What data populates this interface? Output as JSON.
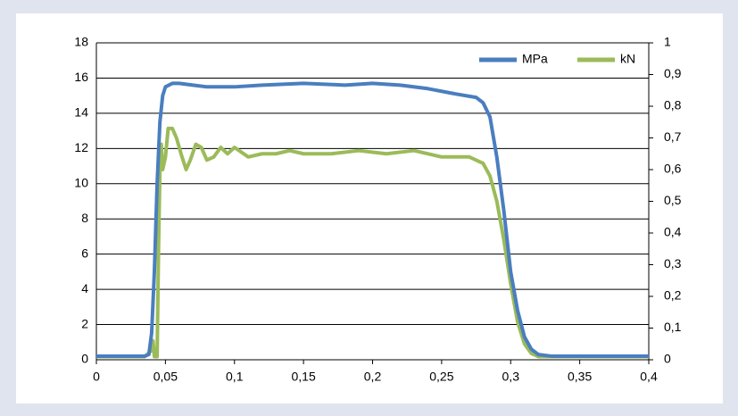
{
  "chart_data": {
    "type": "line",
    "xlim": [
      0,
      0.4
    ],
    "xticks": [
      0,
      {
        "value": 0.05,
        "label": "0,05"
      },
      {
        "value": 0.1,
        "label": "0,1"
      },
      {
        "value": 0.15,
        "label": "0,15"
      },
      {
        "value": 0.2,
        "label": "0,2"
      },
      {
        "value": 0.25,
        "label": "0,25"
      },
      {
        "value": 0.3,
        "label": "0,3"
      },
      {
        "value": 0.35,
        "label": "0,35"
      },
      {
        "value": 0.4,
        "label": "0,4"
      }
    ],
    "ylim": [
      0,
      18
    ],
    "yticks": [
      0,
      2,
      4,
      6,
      8,
      10,
      12,
      14,
      16,
      18
    ],
    "y2lim": [
      0,
      1
    ],
    "y2ticks": [
      0,
      {
        "value": 0.1,
        "label": "0,1"
      },
      {
        "value": 0.2,
        "label": "0,2"
      },
      {
        "value": 0.3,
        "label": "0,3"
      },
      {
        "value": 0.4,
        "label": "0,4"
      },
      {
        "value": 0.5,
        "label": "0,5"
      },
      {
        "value": 0.6,
        "label": "0,6"
      },
      {
        "value": 0.7,
        "label": "0,7"
      },
      {
        "value": 0.8,
        "label": "0,8"
      },
      {
        "value": 0.9,
        "label": "0,9"
      },
      1
    ],
    "grid": true,
    "legend": "top-right",
    "series": [
      {
        "name": "MPa",
        "color": "#4a7ebf",
        "x": [
          0,
          0.035,
          0.038,
          0.04,
          0.042,
          0.044,
          0.046,
          0.048,
          0.05,
          0.055,
          0.06,
          0.07,
          0.08,
          0.1,
          0.12,
          0.15,
          0.18,
          0.2,
          0.22,
          0.24,
          0.26,
          0.275,
          0.28,
          0.285,
          0.29,
          0.295,
          0.3,
          0.305,
          0.31,
          0.315,
          0.32,
          0.33,
          0.4
        ],
        "values": [
          0.2,
          0.2,
          0.3,
          1.5,
          5,
          10,
          13.5,
          15,
          15.5,
          15.7,
          15.7,
          15.6,
          15.5,
          15.5,
          15.6,
          15.7,
          15.6,
          15.7,
          15.6,
          15.4,
          15.1,
          14.9,
          14.6,
          13.8,
          11.5,
          8.5,
          5,
          2.8,
          1.3,
          0.6,
          0.3,
          0.2,
          0.2
        ]
      },
      {
        "name": "kN",
        "color": "#9bbb59",
        "axis": "y2",
        "x": [
          0,
          0.035,
          0.04,
          0.041,
          0.042,
          0.044,
          0.045,
          0.046,
          0.047,
          0.048,
          0.05,
          0.052,
          0.055,
          0.058,
          0.062,
          0.065,
          0.068,
          0.072,
          0.076,
          0.08,
          0.085,
          0.09,
          0.095,
          0.1,
          0.11,
          0.12,
          0.13,
          0.14,
          0.15,
          0.17,
          0.19,
          0.21,
          0.23,
          0.25,
          0.27,
          0.28,
          0.285,
          0.29,
          0.295,
          0.3,
          0.305,
          0.31,
          0.315,
          0.32,
          0.4
        ],
        "values": [
          0.01,
          0.01,
          0.03,
          0.06,
          0.01,
          0.01,
          0.35,
          0.6,
          0.68,
          0.6,
          0.64,
          0.73,
          0.73,
          0.7,
          0.64,
          0.6,
          0.63,
          0.68,
          0.67,
          0.63,
          0.64,
          0.67,
          0.65,
          0.67,
          0.64,
          0.65,
          0.65,
          0.66,
          0.65,
          0.65,
          0.66,
          0.65,
          0.66,
          0.64,
          0.64,
          0.62,
          0.58,
          0.5,
          0.38,
          0.24,
          0.12,
          0.05,
          0.02,
          0.01,
          0.01
        ]
      }
    ]
  }
}
